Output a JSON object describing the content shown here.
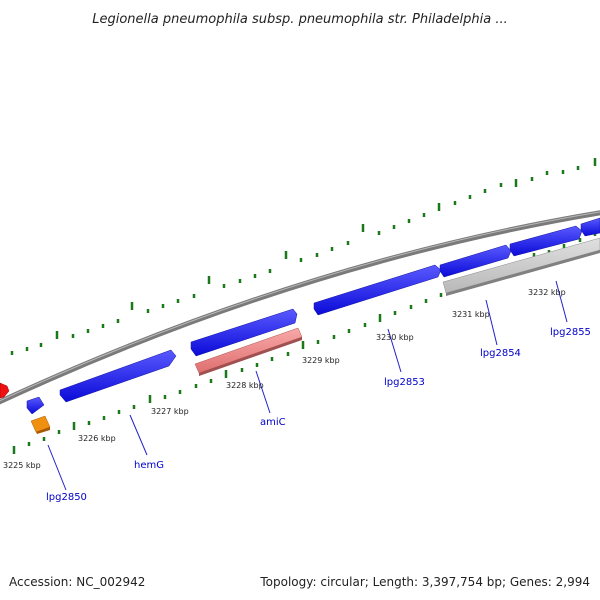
{
  "title": "Legionella pneumophila subsp. pneumophila str. Philadelphia ...",
  "ticks": {
    "t3225": "3225 kbp",
    "t3226": "3226 kbp",
    "t3227": "3227 kbp",
    "t3228": "3228 kbp",
    "t3229": "3229 kbp",
    "t3230": "3230 kbp",
    "t3231": "3231 kbp",
    "t3232": "3232 kbp"
  },
  "genes": {
    "lpg2850": "lpg2850",
    "hemG": "hemG",
    "amiC": "amiC",
    "lpg2853": "lpg2853",
    "lpg2854": "lpg2854",
    "lpg2855": "lpg2855"
  },
  "footer": {
    "accession": "Accession: NC_002942",
    "summary": "Topology: circular; Length: 3,397,754 bp; Genes: 2,994"
  },
  "colors": {
    "forward_gene": "#1010e0",
    "reverse_gene": "#f08080",
    "pseudo_gene": "#c8c8c8",
    "backbone": "#888888",
    "tick_marks": "#1a7a1a",
    "gene_labels": "#0000cc",
    "highlight_red": "#ee1111",
    "highlight_orange": "#f09010"
  }
}
